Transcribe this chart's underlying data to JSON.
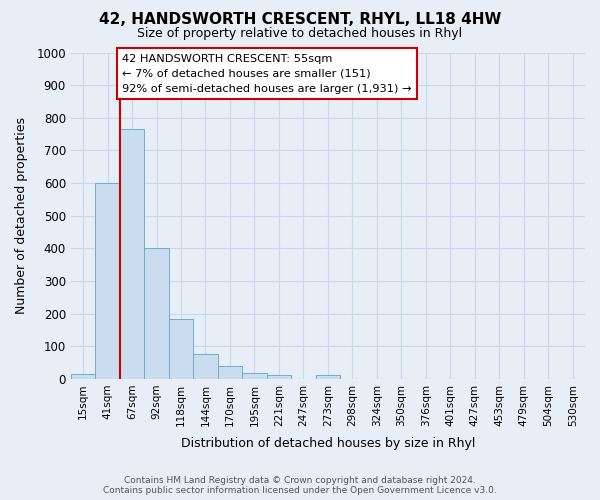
{
  "title": "42, HANDSWORTH CRESCENT, RHYL, LL18 4HW",
  "subtitle": "Size of property relative to detached houses in Rhyl",
  "xlabel": "Distribution of detached houses by size in Rhyl",
  "ylabel": "Number of detached properties",
  "bar_labels": [
    "15sqm",
    "41sqm",
    "67sqm",
    "92sqm",
    "118sqm",
    "144sqm",
    "170sqm",
    "195sqm",
    "221sqm",
    "247sqm",
    "273sqm",
    "298sqm",
    "324sqm",
    "350sqm",
    "376sqm",
    "401sqm",
    "427sqm",
    "453sqm",
    "479sqm",
    "504sqm",
    "530sqm"
  ],
  "bar_heights": [
    15,
    600,
    765,
    400,
    185,
    75,
    38,
    18,
    12,
    0,
    12,
    0,
    0,
    0,
    0,
    0,
    0,
    0,
    0,
    0,
    0
  ],
  "bar_color": "#c9ddef",
  "bar_edge_color": "#6aaed6",
  "ylim": [
    0,
    1000
  ],
  "yticks": [
    0,
    100,
    200,
    300,
    400,
    500,
    600,
    700,
    800,
    900,
    1000
  ],
  "vline_color": "#cc0000",
  "annotation_line1": "42 HANDSWORTH CRESCENT: 55sqm",
  "annotation_line2": "← 7% of detached houses are smaller (151)",
  "annotation_line3": "92% of semi-detached houses are larger (1,931) →",
  "annotation_box_color": "#ffffff",
  "annotation_box_edge": "#cc0000",
  "footer1": "Contains HM Land Registry data © Crown copyright and database right 2024.",
  "footer2": "Contains public sector information licensed under the Open Government Licence v3.0.",
  "grid_color": "#c8d8ea",
  "background_color": "#e8eef6"
}
